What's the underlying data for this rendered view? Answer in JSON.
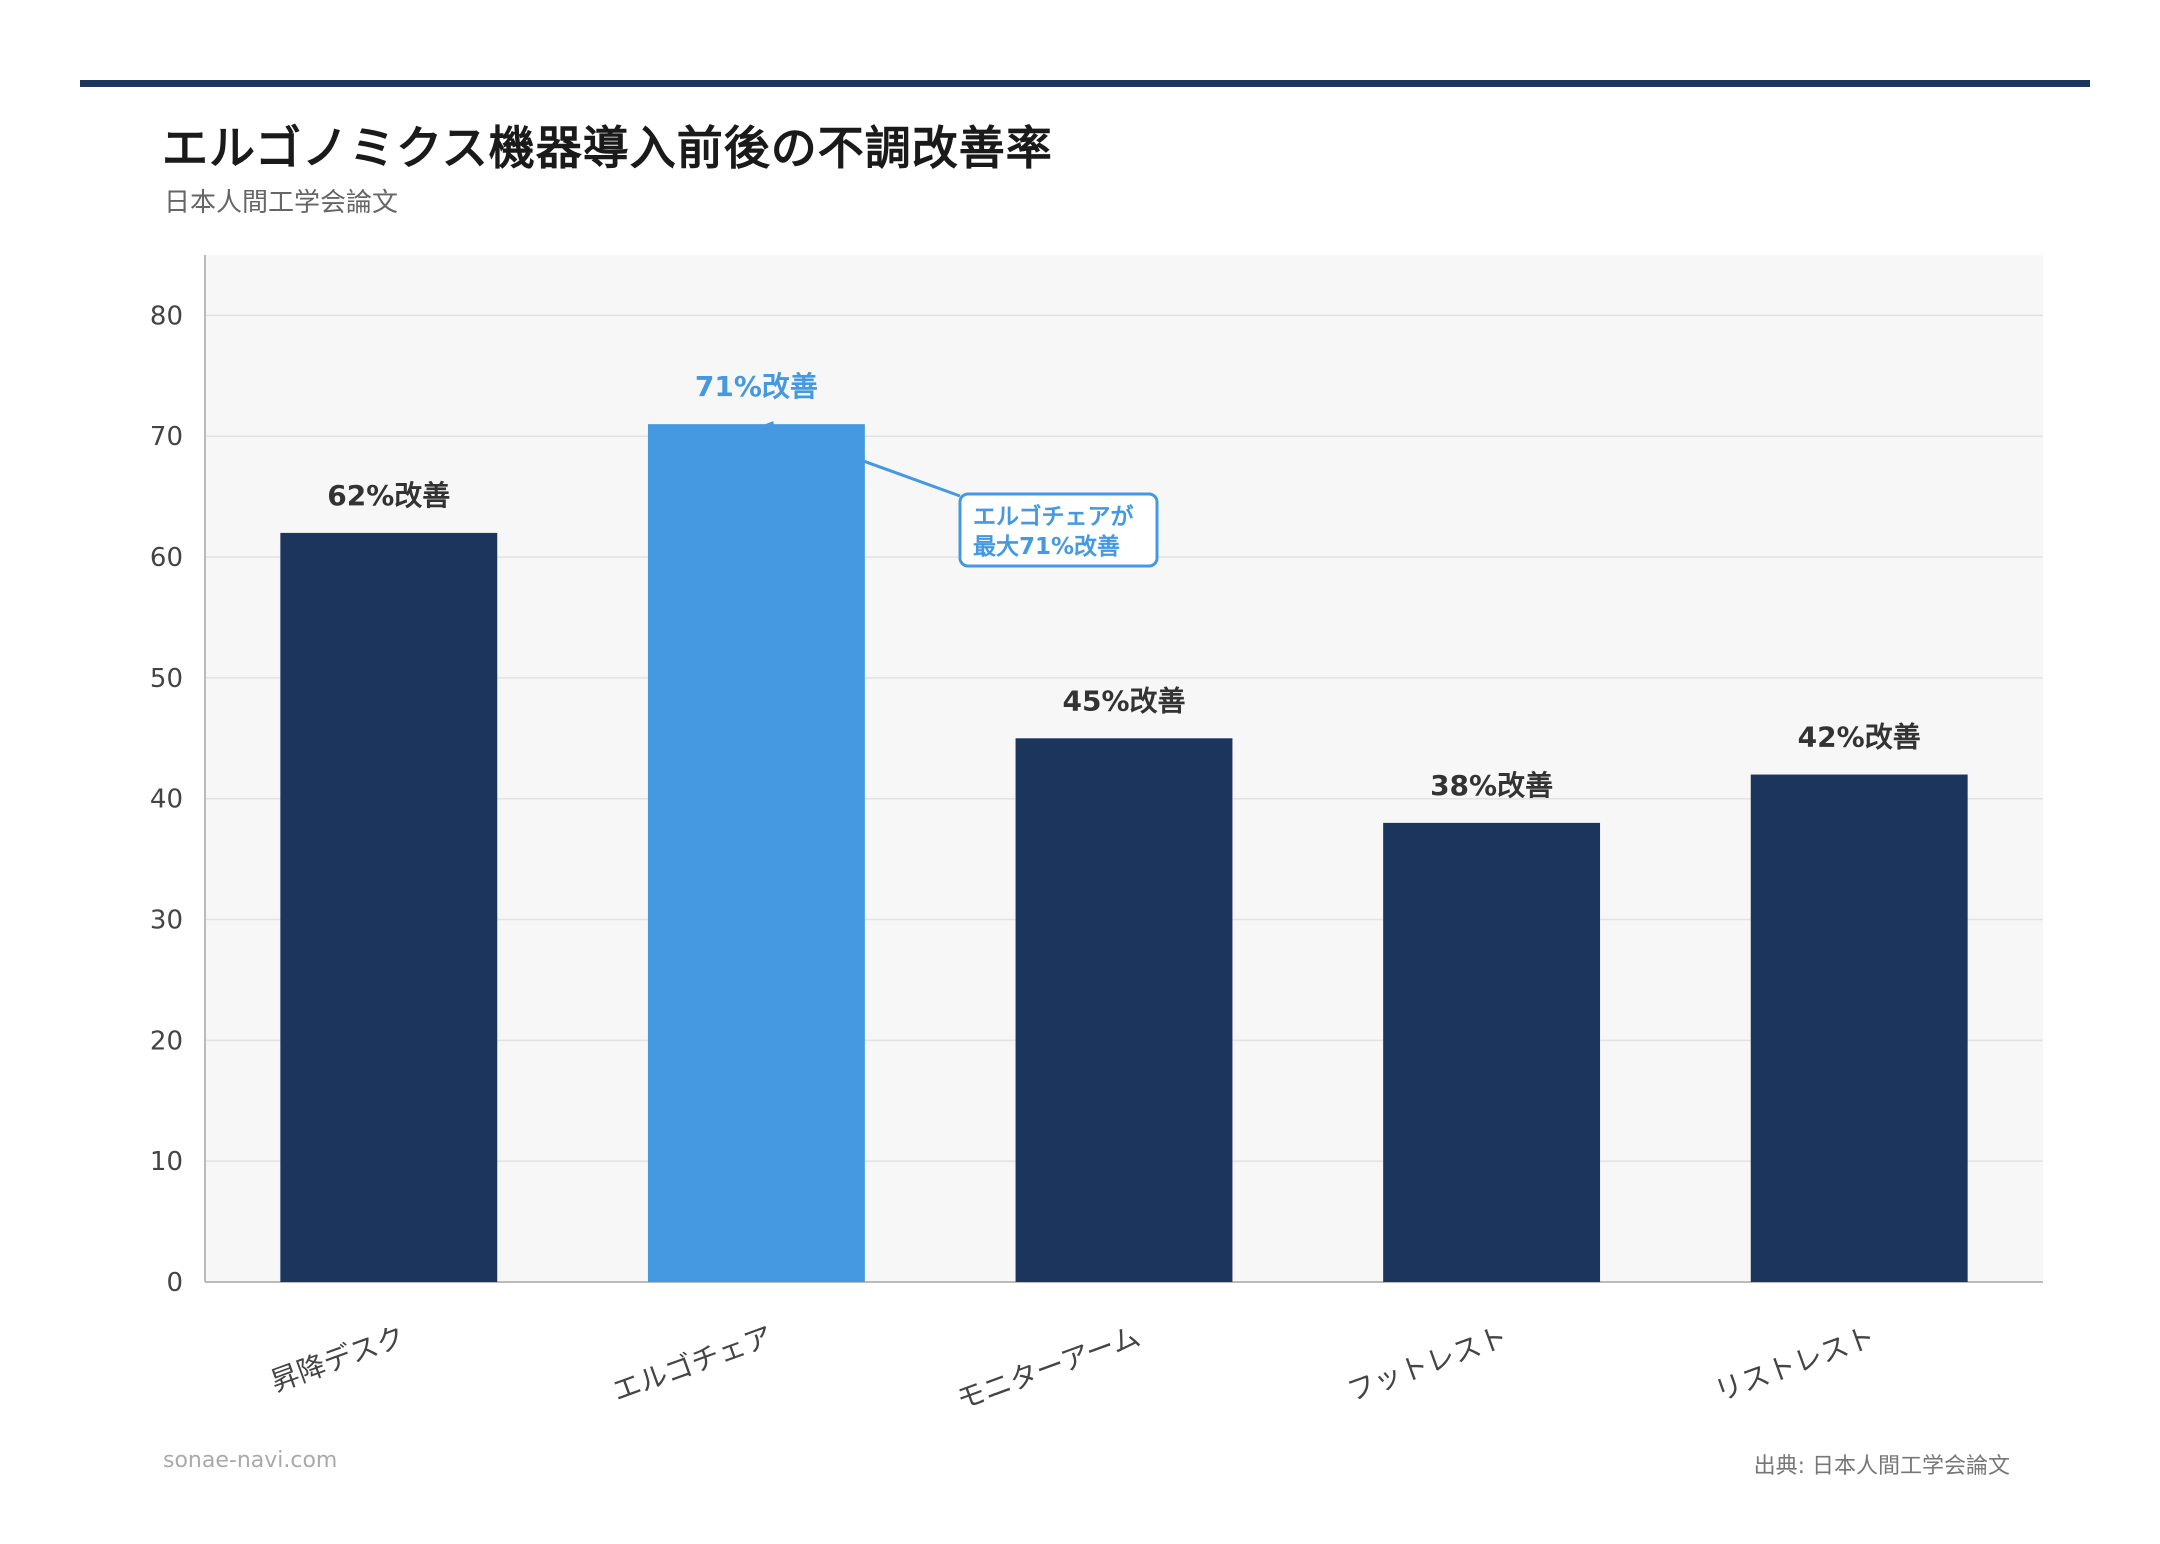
{
  "header": {
    "title": "エルゴノミクス機器導入前後の不調改善率",
    "subtitle": "日本人間工学会論文"
  },
  "footer": {
    "site": "sonae-navi.com",
    "source_prefix": "出典: ",
    "source": "日本人間工学会論文"
  },
  "colors": {
    "accent_rule": "#1c355c",
    "bar": "#1c355c",
    "highlight_bar": "#4499e0",
    "plot_bg": "#f7f7f7",
    "grid": "#e2e2e2"
  },
  "chart_data": {
    "type": "bar",
    "title": "エルゴノミクス機器導入前後の不調改善率",
    "subtitle": "日本人間工学会論文",
    "categories": [
      "昇降デスク",
      "エルゴチェア",
      "モニターアーム",
      "フットレスト",
      "リストレスト"
    ],
    "values": [
      62,
      71,
      45,
      38,
      42
    ],
    "data_labels": [
      "62%改善",
      "71%改善",
      "45%改善",
      "38%改善",
      "42%改善"
    ],
    "highlight_index": 1,
    "ylim": [
      0,
      85
    ],
    "yticks": [
      0,
      10,
      20,
      30,
      40,
      50,
      60,
      70,
      80
    ],
    "xlabel": "",
    "ylabel": "",
    "grid": true,
    "annotation": {
      "lines": [
        "エルゴチェアが",
        "最大71%改善"
      ],
      "target_index": 1
    }
  }
}
